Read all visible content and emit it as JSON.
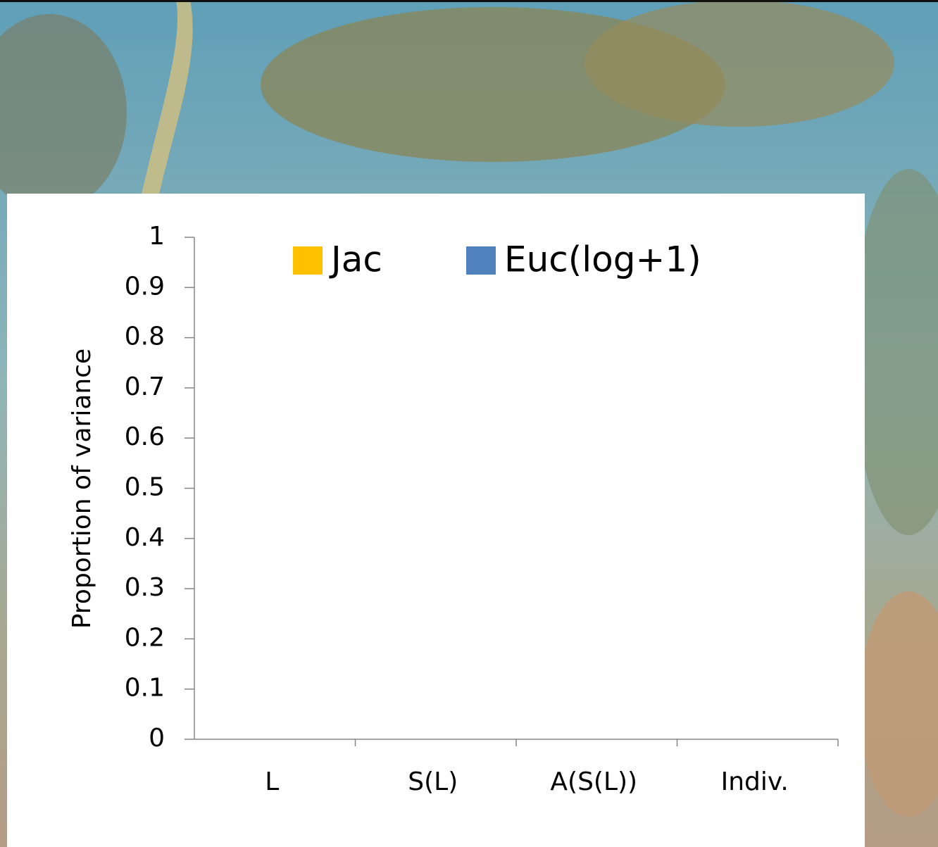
{
  "chart_data": {
    "type": "bar",
    "y_label": "Proportion of variance",
    "categories": [
      "L",
      "S(L)",
      "A(S(L))",
      "Indiv."
    ],
    "series": [
      {
        "name": "Jac",
        "color": "#ffc000",
        "values": [
          null,
          null,
          null,
          null
        ]
      },
      {
        "name": "Euc(log+1)",
        "color": "#4f81bd",
        "values": [
          null,
          null,
          null,
          null
        ]
      }
    ],
    "ylim": [
      0,
      1
    ],
    "yticks": [
      0,
      0.1,
      0.2,
      0.3,
      0.4,
      0.5,
      0.6,
      0.7,
      0.8,
      0.9,
      1
    ],
    "legend": "top"
  }
}
